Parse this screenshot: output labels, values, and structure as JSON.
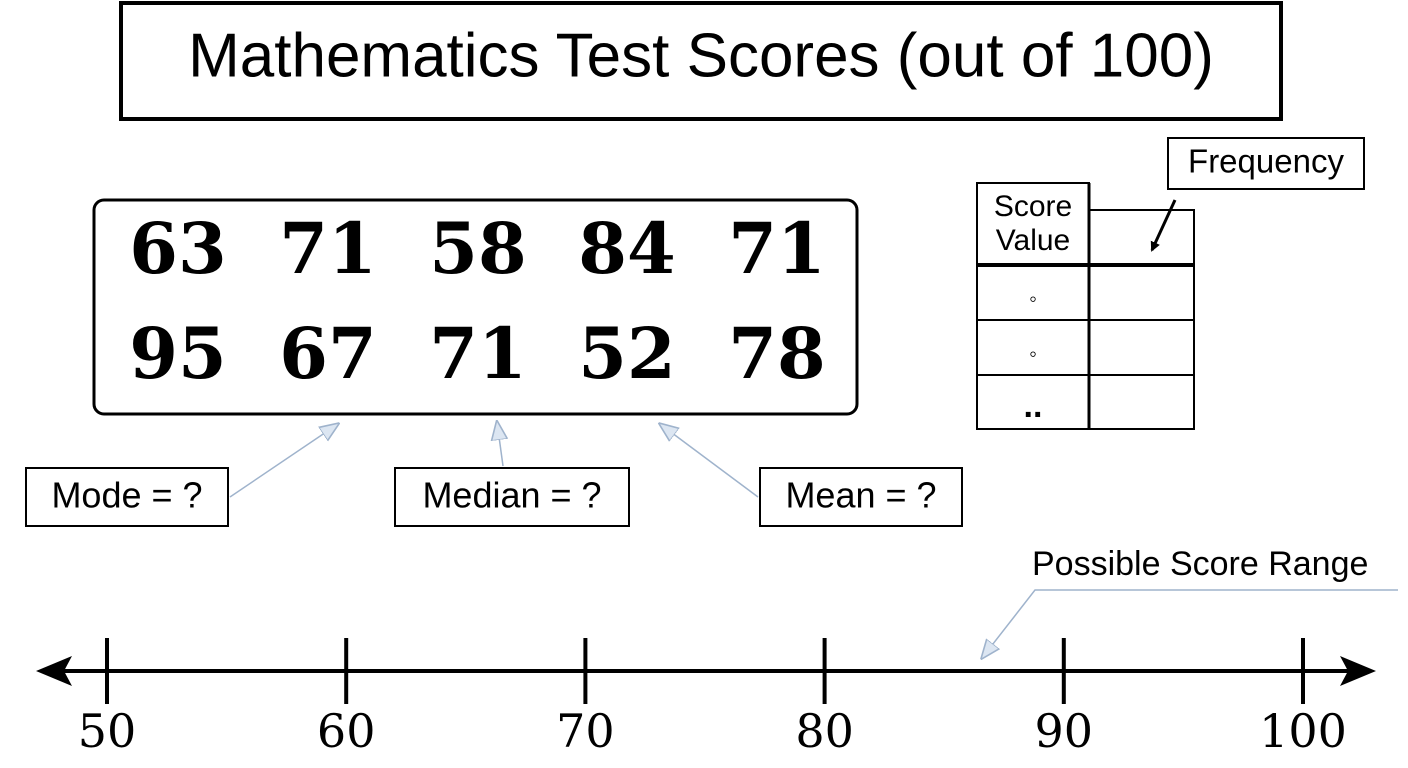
{
  "title": "Mathematics Test Scores (out of 100)",
  "scores": {
    "rows": [
      [
        63,
        71,
        58,
        84,
        71
      ],
      [
        95,
        67,
        71,
        52,
        78
      ]
    ]
  },
  "callouts": [
    "Mode = ?",
    "Median = ?",
    "Mean = ?"
  ],
  "frequency_table": {
    "headers": [
      "Score Value",
      "Frequency"
    ],
    "rows": [
      "◦",
      "◦",
      ".."
    ]
  },
  "number_line": {
    "label": "Possible Score Range",
    "ticks": [
      50,
      60,
      70,
      80,
      90,
      100
    ]
  }
}
